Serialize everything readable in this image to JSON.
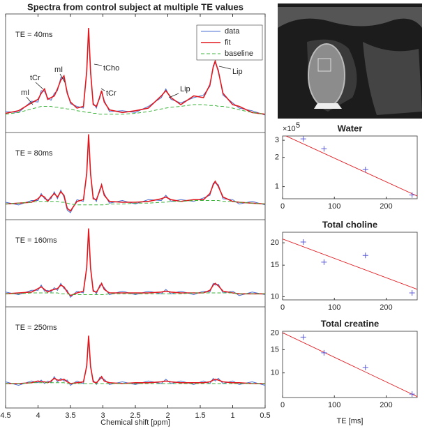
{
  "chart_data": [
    {
      "type": "line",
      "title": "Spectra from control subject at multiple TE values",
      "xlabel": "Chemical shift [ppm]",
      "x": [
        4.5,
        4.3,
        4.1,
        4.0,
        3.95,
        3.9,
        3.85,
        3.8,
        3.75,
        3.7,
        3.65,
        3.6,
        3.55,
        3.5,
        3.4,
        3.3,
        3.25,
        3.22,
        3.19,
        3.15,
        3.1,
        3.05,
        3.02,
        2.98,
        2.9,
        2.7,
        2.5,
        2.3,
        2.1,
        2.03,
        1.95,
        1.8,
        1.6,
        1.45,
        1.35,
        1.3,
        1.27,
        1.22,
        1.15,
        1.0,
        0.9,
        0.7,
        0.5
      ],
      "xlim": [
        4.5,
        0.5
      ],
      "xticks": [
        4.5,
        4,
        3.5,
        3,
        2.5,
        2,
        1.5,
        1,
        0.5
      ],
      "legend": "upper right",
      "series": [
        {
          "name": "data",
          "color": "#4a6fd0",
          "values": [
            [
              4,
              3,
              16,
              15,
              28,
              27,
              20,
              17,
              25,
              28,
              43,
              42,
              27,
              13,
              10,
              8,
              52,
              98,
              47,
              14,
              8,
              22,
              26,
              17,
              4,
              5,
              3,
              10,
              20,
              30,
              18,
              14,
              20,
              23,
              33,
              57,
              60,
              52,
              23,
              14,
              8,
              5,
              0
            ],
            [
              2,
              -1,
              4,
              4,
              12,
              6,
              5,
              6,
              14,
              6,
              16,
              8,
              -7,
              -10,
              5,
              3,
              37,
              78,
              33,
              8,
              3,
              17,
              20,
              12,
              1,
              4,
              0,
              5,
              4,
              10,
              3,
              5,
              3,
              7,
              10,
              24,
              24,
              22,
              6,
              5,
              0,
              3,
              -1
            ],
            [
              2,
              -1,
              4,
              4,
              10,
              3,
              4,
              2,
              7,
              4,
              12,
              6,
              4,
              -4,
              3,
              1,
              32,
              73,
              28,
              5,
              0,
              10,
              10,
              7,
              -1,
              3,
              -1,
              3,
              0,
              5,
              0,
              3,
              -1,
              3,
              2,
              12,
              10,
              11,
              1,
              3,
              -2,
              2,
              -1
            ],
            [
              2,
              -2,
              3,
              1,
              4,
              0,
              3,
              1,
              8,
              2,
              6,
              3,
              4,
              -2,
              3,
              0,
              22,
              53,
              18,
              4,
              -1,
              7,
              6,
              5,
              -1,
              2,
              -1,
              3,
              0,
              5,
              0,
              3,
              -1,
              3,
              0,
              6,
              3,
              6,
              0,
              3,
              -1,
              2,
              -2
            ]
          ]
        },
        {
          "name": "fit",
          "color": "#e0181e",
          "values": [
            [
              2,
              5,
              14,
              18,
              25,
              30,
              18,
              20,
              22,
              30,
              40,
              45,
              25,
              15,
              8,
              10,
              50,
              100,
              50,
              12,
              10,
              20,
              28,
              15,
              6,
              3,
              5,
              8,
              22,
              28,
              20,
              12,
              22,
              20,
              35,
              55,
              62,
              50,
              25,
              12,
              10,
              3,
              1
            ],
            [
              0,
              1,
              2,
              6,
              10,
              8,
              3,
              8,
              12,
              8,
              14,
              10,
              -5,
              -8,
              3,
              5,
              35,
              80,
              35,
              6,
              5,
              15,
              22,
              10,
              3,
              2,
              2,
              3,
              6,
              8,
              5,
              3,
              5,
              5,
              12,
              22,
              26,
              20,
              8,
              3,
              2,
              1,
              0
            ],
            [
              0,
              1,
              2,
              6,
              8,
              5,
              2,
              4,
              5,
              6,
              10,
              8,
              2,
              -2,
              1,
              3,
              30,
              75,
              30,
              3,
              2,
              8,
              12,
              5,
              1,
              1,
              1,
              1,
              2,
              3,
              2,
              1,
              1,
              1,
              4,
              10,
              12,
              9,
              3,
              1,
              0,
              0,
              0
            ],
            [
              0,
              0,
              1,
              3,
              2,
              2,
              1,
              3,
              6,
              4,
              4,
              5,
              2,
              0,
              1,
              2,
              20,
              55,
              20,
              2,
              1,
              5,
              8,
              3,
              1,
              0,
              1,
              1,
              2,
              3,
              2,
              1,
              1,
              1,
              2,
              4,
              5,
              4,
              2,
              1,
              1,
              0,
              0
            ]
          ]
        },
        {
          "name": "baseline",
          "color": "#3cb43c",
          "linestyle": "dashed",
          "values": [
            [
              1,
              3,
              7,
              9,
              10,
              10,
              10,
              10,
              9,
              9,
              8,
              8,
              7,
              7,
              5,
              4,
              3,
              3,
              3,
              2,
              2,
              1,
              1,
              1,
              1,
              1,
              2,
              4,
              7,
              8,
              9,
              10,
              12,
              12,
              11,
              11,
              11,
              10,
              10,
              8,
              6,
              3,
              1
            ],
            [
              0,
              1,
              2,
              3,
              3,
              3,
              3,
              3,
              3,
              3,
              2,
              2,
              1,
              0,
              -1,
              -1,
              -1,
              -1,
              -1,
              -1,
              -1,
              -1,
              -1,
              -1,
              0,
              0,
              1,
              1,
              2,
              2,
              3,
              3,
              4,
              4,
              4,
              4,
              4,
              4,
              3,
              3,
              2,
              1,
              0
            ],
            [
              0,
              0,
              1,
              1,
              1,
              1,
              1,
              1,
              1,
              1,
              0,
              0,
              0,
              -1,
              -1,
              -1,
              -1,
              -1,
              -1,
              -1,
              -1,
              -1,
              -1,
              -1,
              0,
              0,
              0,
              0,
              0,
              0,
              0,
              0,
              1,
              1,
              1,
              1,
              1,
              1,
              1,
              1,
              0,
              0,
              0
            ],
            [
              0,
              0,
              1,
              1,
              1,
              1,
              1,
              1,
              1,
              1,
              1,
              1,
              0,
              0,
              0,
              0,
              0,
              0,
              0,
              0,
              0,
              0,
              0,
              0,
              0,
              0,
              0,
              0,
              0,
              0,
              0,
              0,
              0,
              0,
              0,
              0,
              0,
              0,
              0,
              0,
              0,
              0,
              0
            ]
          ]
        }
      ],
      "panels": [
        {
          "label": "TE = 40ms",
          "ylim": [
            -20,
            116
          ]
        },
        {
          "label": "TE = 80ms",
          "ylim": [
            -18,
            82
          ]
        },
        {
          "label": "TE = 160ms",
          "ylim": [
            -15,
            85
          ]
        },
        {
          "label": "TE = 250ms",
          "ylim": [
            -28,
            88
          ]
        }
      ],
      "annotations": [
        "mI",
        "tCr",
        "mI",
        "tCho",
        "tCr",
        "Lip",
        "Lip"
      ]
    },
    {
      "type": "scatter",
      "title": "Water",
      "x": [
        40,
        80,
        160,
        250
      ],
      "values": [
        3.1,
        2.45,
        1.5,
        0.82
      ],
      "color": "#5b5bd6",
      "fit": {
        "x": [
          0,
          260
        ],
        "values": [
          3.45,
          0.8
        ],
        "color": "#e0181e"
      },
      "xlim": [
        0,
        260
      ],
      "xticks": [
        0,
        100,
        200
      ],
      "ylim": [
        0.75,
        3.32
      ],
      "yticks": [
        1,
        2,
        3
      ],
      "log_y": true,
      "y_multiplier": {
        "base": "×10",
        "exponent": "5"
      }
    },
    {
      "type": "scatter",
      "title": "Total choline",
      "x": [
        40,
        80,
        160,
        250
      ],
      "values": [
        20.2,
        15.6,
        17,
        10.5
      ],
      "color": "#5b5bd6",
      "fit": {
        "x": [
          0,
          260
        ],
        "values": [
          21,
          11
        ],
        "color": "#e0181e"
      },
      "xlim": [
        0,
        260
      ],
      "xticks": [
        0,
        100,
        200
      ],
      "ylim": [
        9.6,
        22.9
      ],
      "yticks": [
        10,
        15,
        20
      ],
      "log_y": true
    },
    {
      "type": "scatter",
      "title": "Total creatine",
      "xlabel": "TE [ms]",
      "x": [
        40,
        80,
        160,
        250
      ],
      "values": [
        18.7,
        14.2,
        11,
        6.9
      ],
      "color": "#5b5bd6",
      "fit": {
        "x": [
          0,
          260
        ],
        "values": [
          20.2,
          6.6
        ],
        "color": "#e0181e"
      },
      "xlim": [
        0,
        260
      ],
      "xticks": [
        0,
        100,
        200
      ],
      "ylim": [
        6.5,
        20.7
      ],
      "yticks": [
        10,
        15,
        20
      ],
      "log_y": true
    }
  ]
}
